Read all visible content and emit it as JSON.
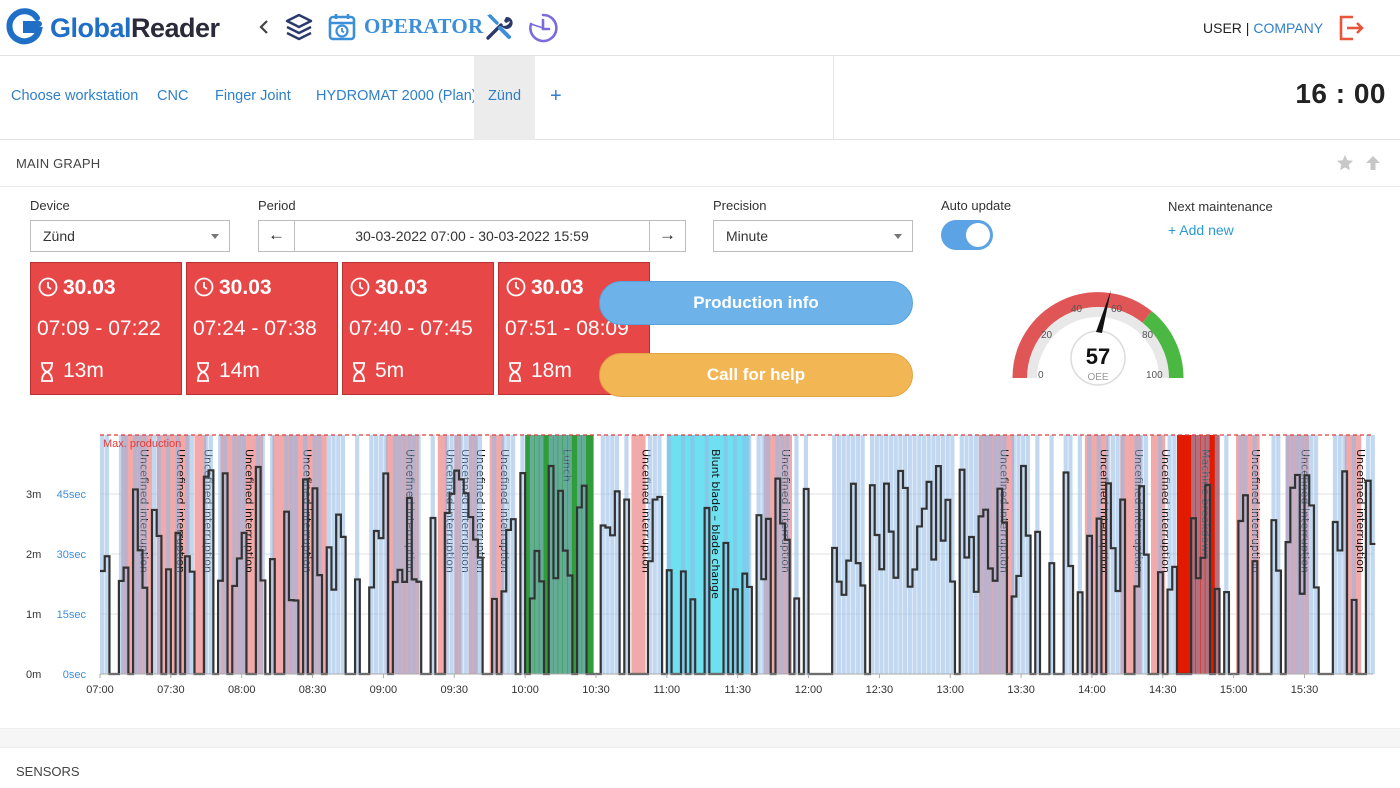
{
  "header": {
    "logo_part1": "Global",
    "logo_part2": "Reader",
    "module_label": "OPERATOR",
    "user": "USER",
    "separator": "|",
    "company": "COMPANY",
    "icons": [
      "globalreader-logo-icon",
      "chevron-left-icon",
      "layers-icon",
      "calendar-clock-icon",
      "tools-icon",
      "clock-chart-icon",
      "logout-icon"
    ],
    "accent_color": "#3b8fd9",
    "logout_color": "#e8553d"
  },
  "tabs": {
    "items": [
      {
        "label": "Choose workstation",
        "active": false
      },
      {
        "label": "CNC",
        "active": false
      },
      {
        "label": "Finger Joint",
        "active": false
      },
      {
        "label": "HYDROMAT 2000 (Plan)",
        "active": false
      },
      {
        "label": "Zünd",
        "active": true
      }
    ],
    "add_label": "+",
    "clock": "16 : 00"
  },
  "main_graph": {
    "title": "MAIN GRAPH",
    "device_label": "Device",
    "device_value": "Zünd",
    "period_label": "Period",
    "period_value": "30-03-2022 07:00 - 30-03-2022 15:59",
    "precision_label": "Precision",
    "precision_value": "Minute",
    "auto_update_label": "Auto update",
    "auto_update_on": true,
    "next_maintenance_label": "Next maintenance",
    "add_new_label": "+ Add new"
  },
  "interruptions": [
    {
      "date": "30.03",
      "time": "07:09 - 07:22",
      "duration": "13m"
    },
    {
      "date": "30.03",
      "time": "07:24 - 07:38",
      "duration": "14m"
    },
    {
      "date": "30.03",
      "time": "07:40 - 07:45",
      "duration": "5m"
    },
    {
      "date": "30.03",
      "time": "07:51 - 08:09",
      "duration": "18m"
    }
  ],
  "actions": {
    "production_info": "Production info",
    "call_for_help": "Call for help"
  },
  "oee": {
    "value": "57",
    "label": "OEE",
    "scale_labels": [
      "0",
      "20",
      "40",
      "60",
      "80",
      "100"
    ],
    "colors": {
      "low": "#e05555",
      "high": "#4cb844"
    }
  },
  "chart_data": {
    "type": "area",
    "max_production_label": "Max. production",
    "x_ticks": [
      "07:00",
      "07:30",
      "08:00",
      "08:30",
      "09:00",
      "09:30",
      "10:00",
      "10:30",
      "11:00",
      "11:30",
      "12:00",
      "12:30",
      "13:00",
      "13:30",
      "14:00",
      "14:30",
      "15:00",
      "15:30"
    ],
    "y_ticks_left": [
      "0m",
      "1m",
      "2m",
      "3m"
    ],
    "y_ticks_right": [
      "0sec",
      "15sec",
      "30sec",
      "45sec"
    ],
    "x_range": [
      "07:00",
      "15:59"
    ],
    "events": [
      {
        "label": "Uncefined interruption",
        "start": "07:09",
        "end": "07:22",
        "color": "#f2a9a9"
      },
      {
        "label": "Uncefined interruption",
        "start": "07:24",
        "end": "07:38",
        "color": "#f2a9a9"
      },
      {
        "label": "Uncefined interruption",
        "start": "07:40",
        "end": "07:45",
        "color": "#f2a9a9"
      },
      {
        "label": "Uncefined interruption",
        "start": "07:51",
        "end": "08:09",
        "color": "#f2a9a9"
      },
      {
        "label": "Uncefined interruption",
        "start": "08:13",
        "end": "08:36",
        "color": "#f2a9a9"
      },
      {
        "label": "Uncefined interruption",
        "start": "09:01",
        "end": "09:15",
        "color": "#f2a9a9"
      },
      {
        "label": "Uncefined interruption",
        "start": "09:23",
        "end": "09:27",
        "color": "#f2a9a9"
      },
      {
        "label": "Uncefined interruption",
        "start": "09:30",
        "end": "09:33",
        "color": "#f2a9a9"
      },
      {
        "label": "Uncefined interruption",
        "start": "09:36",
        "end": "09:40",
        "color": "#f2a9a9"
      },
      {
        "label": "Uncefined interruption",
        "start": "09:45",
        "end": "09:51",
        "color": "#f2a9a9"
      },
      {
        "label": "Lunch",
        "start": "10:00",
        "end": "10:29",
        "color": "#2f9e3a"
      },
      {
        "label": "Uncefined interruption",
        "start": "10:45",
        "end": "10:51",
        "color": "#f2a9a9"
      },
      {
        "label": "Blunt blade – blade change",
        "start": "11:00",
        "end": "11:35",
        "color": "#6fe0ef"
      },
      {
        "label": "Uncefined interruption",
        "start": "11:41",
        "end": "11:53",
        "color": "#f2a9a9"
      },
      {
        "label": "Uncefined interruption",
        "start": "13:12",
        "end": "13:27",
        "color": "#f2a9a9"
      },
      {
        "label": "Uncefined interruption",
        "start": "13:57",
        "end": "14:07",
        "color": "#f2a9a9"
      },
      {
        "label": "Uncefined interruption",
        "start": "14:12",
        "end": "14:21",
        "color": "#f2a9a9"
      },
      {
        "label": "Uncefined interruption",
        "start": "14:25",
        "end": "14:31",
        "color": "#f2a9a9"
      },
      {
        "label": "Machine breakdown",
        "start": "14:36",
        "end": "14:54",
        "color": "#e11a00"
      },
      {
        "label": "Uncefined interruption",
        "start": "15:01",
        "end": "15:11",
        "color": "#f2a9a9"
      },
      {
        "label": "Uncefined interruption",
        "start": "15:22",
        "end": "15:32",
        "color": "#f2a9a9"
      },
      {
        "label": "Uncefined interruption",
        "start": "15:47",
        "end": "15:54",
        "color": "#f2a9a9"
      }
    ]
  },
  "sensors": {
    "title": "SENSORS"
  }
}
